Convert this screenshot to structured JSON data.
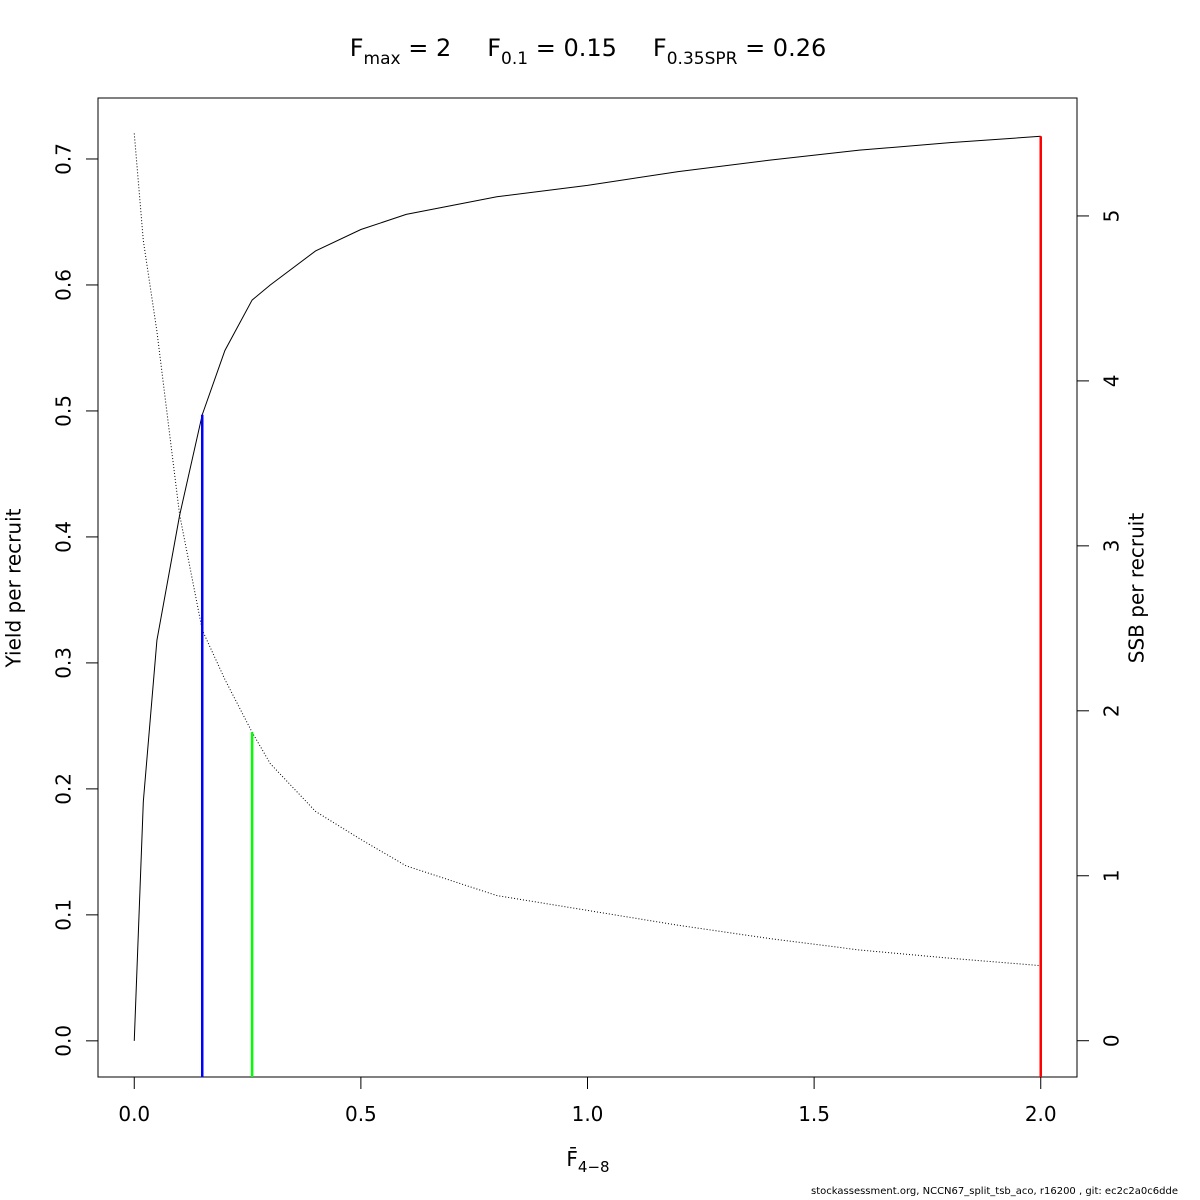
{
  "chart_data": {
    "type": "line",
    "title_parts": [
      {
        "main": "F",
        "sub": "max",
        "tail": " = 2"
      },
      {
        "main": "F",
        "sub": "0.1",
        "tail": " = 0.15"
      },
      {
        "main": "F",
        "sub": "0.35SPR",
        "tail": " = 0.26"
      }
    ],
    "xlabel": {
      "main": "F̄",
      "sub": "4−8"
    },
    "ylabel": "Yield per recruit",
    "y2label": "SSB per recruit",
    "footer": "stockassessment.org, NCCN67_split_tsb_aco, r16200 , git: ec2c2a0c6dde",
    "x": [
      0,
      0.02,
      0.05,
      0.1,
      0.15,
      0.2,
      0.26,
      0.3,
      0.4,
      0.5,
      0.6,
      0.8,
      1.0,
      1.2,
      1.4,
      1.6,
      1.8,
      2.0
    ],
    "series": [
      {
        "color": "#000000",
        "linestyle": "solid",
        "values": [
          0,
          0.19,
          0.318,
          0.417,
          0.497,
          0.548,
          0.588,
          0.6,
          0.627,
          0.644,
          0.656,
          0.67,
          0.679,
          0.69,
          0.699,
          0.707,
          0.713,
          0.718
        ]
      },
      {
        "color": "#000000",
        "linestyle": "dotted",
        "axis": "y2",
        "values": [
          5.5,
          4.85,
          4.3,
          3.19,
          2.49,
          2.19,
          1.87,
          1.68,
          1.39,
          1.22,
          1.06,
          0.88,
          0.79,
          0.7,
          0.62,
          0.55,
          0.5,
          0.455
        ]
      }
    ],
    "vlines": [
      {
        "x": 0.15,
        "top": 0.497,
        "color": "#0000ff"
      },
      {
        "x": 0.26,
        "top": 1.87,
        "axis": "y2",
        "color": "#00ff00"
      },
      {
        "x": 2,
        "top": 0.718,
        "color": "#ff0000"
      }
    ],
    "xlim": [
      -0.08,
      2.08
    ],
    "xticks": [
      {
        "value": 0,
        "label": "0.0"
      },
      {
        "value": 0.5,
        "label": "0.5"
      },
      {
        "value": 1,
        "label": "1.0"
      },
      {
        "value": 1.5,
        "label": "1.5"
      },
      {
        "value": 2,
        "label": "2.0"
      }
    ],
    "ylim": [
      -0.0287,
      0.7484
    ],
    "yticks": [
      {
        "value": 0,
        "label": "0.0"
      },
      {
        "value": 0.1,
        "label": "0.1"
      },
      {
        "value": 0.2,
        "label": "0.2"
      },
      {
        "value": 0.3,
        "label": "0.3"
      },
      {
        "value": 0.4,
        "label": "0.4"
      },
      {
        "value": 0.5,
        "label": "0.5"
      },
      {
        "value": 0.6,
        "label": "0.6"
      },
      {
        "value": 0.7,
        "label": "0.7"
      }
    ],
    "y2lim": [
      -0.22,
      5.715
    ],
    "y2ticks": [
      0,
      1,
      2,
      3,
      4,
      5
    ]
  }
}
